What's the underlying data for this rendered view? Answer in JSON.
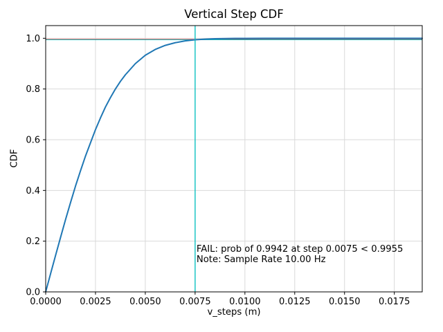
{
  "figure": {
    "title": "Vertical Step CDF",
    "xlabel": "v_steps (m)",
    "ylabel": "CDF",
    "background_color": "#ffffff"
  },
  "chart_data": {
    "type": "line",
    "title": "Vertical Step CDF",
    "xlabel": "v_steps (m)",
    "ylabel": "CDF",
    "xlim": [
      0.0,
      0.0189
    ],
    "ylim": [
      0.0,
      1.05
    ],
    "grid": true,
    "grid_color": "#d9d9d9",
    "legend": "none",
    "x_ticks": [
      0.0,
      0.0025,
      0.005,
      0.0075,
      0.01,
      0.0125,
      0.015,
      0.0175
    ],
    "x_tick_labels": [
      "0.0000",
      "0.0025",
      "0.0050",
      "0.0075",
      "0.0100",
      "0.0125",
      "0.0150",
      "0.0175"
    ],
    "y_ticks": [
      0.0,
      0.2,
      0.4,
      0.6,
      0.8,
      1.0
    ],
    "y_tick_labels": [
      "0.0",
      "0.2",
      "0.4",
      "0.6",
      "0.8",
      "1.0"
    ],
    "series": [
      {
        "name": "vertical-step-cdf-curve",
        "color": "#1f77b4",
        "line_width": 2,
        "points": [
          [
            0.0,
            0.0
          ],
          [
            0.00025,
            0.073
          ],
          [
            0.0005,
            0.145
          ],
          [
            0.00075,
            0.216
          ],
          [
            0.001,
            0.286
          ],
          [
            0.00125,
            0.353
          ],
          [
            0.0015,
            0.418
          ],
          [
            0.00175,
            0.478
          ],
          [
            0.002,
            0.536
          ],
          [
            0.00225,
            0.588
          ],
          [
            0.0025,
            0.64
          ],
          [
            0.00275,
            0.686
          ],
          [
            0.003,
            0.729
          ],
          [
            0.00325,
            0.766
          ],
          [
            0.0035,
            0.8
          ],
          [
            0.00375,
            0.83
          ],
          [
            0.004,
            0.856
          ],
          [
            0.0045,
            0.9
          ],
          [
            0.005,
            0.933
          ],
          [
            0.0055,
            0.956
          ],
          [
            0.006,
            0.972
          ],
          [
            0.0065,
            0.9825
          ],
          [
            0.007,
            0.9896
          ],
          [
            0.0075,
            0.9942
          ],
          [
            0.008,
            0.9966
          ],
          [
            0.0085,
            0.9981
          ],
          [
            0.009,
            0.999
          ],
          [
            0.0095,
            0.9994
          ],
          [
            0.01,
            0.9997
          ],
          [
            0.011,
            0.9999
          ],
          [
            0.012,
            1.0
          ],
          [
            0.014,
            1.0
          ],
          [
            0.016,
            1.0
          ],
          [
            0.018,
            1.0
          ],
          [
            0.0189,
            1.0
          ]
        ]
      }
    ],
    "reference_lines": [
      {
        "name": "required-probability-hline",
        "type": "hline",
        "y": 0.9955,
        "color": "#ff0000"
      },
      {
        "name": "observed-probability-hline",
        "type": "hline",
        "y": 0.9942,
        "color": "#00bfbf"
      },
      {
        "name": "step-threshold-vline",
        "type": "vline",
        "x": 0.0075,
        "color": "#00bfbf"
      }
    ],
    "annotations": [
      {
        "name": "fail-annotation",
        "text": "FAIL: prob of 0.9942 at step 0.0075 < 0.9955",
        "x": 0.0075,
        "y": 0.17,
        "color": "#ff0000"
      },
      {
        "name": "note-annotation",
        "text": "Note: Sample Rate 10.00 Hz",
        "x": 0.0075,
        "y": 0.13,
        "color": "#000000"
      }
    ],
    "fail_check": {
      "observed_prob": 0.9942,
      "step_m": 0.0075,
      "required_prob": 0.9955,
      "status": "FAIL",
      "sample_rate_hz": "10.00"
    }
  }
}
